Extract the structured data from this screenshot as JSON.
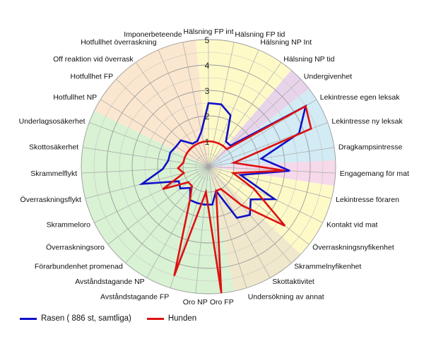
{
  "chart_data": {
    "type": "radar",
    "axes": [
      "Hälsning FP int",
      "Hälsning FP tid",
      "Hälsning NP Int",
      "Hälsning NP tid",
      "Undergivenhet",
      "Lekintresse egen leksak",
      "Lekintresse ny leksak",
      "Dragkampsintresse",
      "Engagemang för mat",
      "Lekintresse föraren",
      "Kontakt vid mat",
      "Överraskningsnyfikenhet",
      "Skrammelnyfikenhet",
      "Skottaktivitet",
      "Undersökning av annat",
      "Oro FP",
      "Oro NP",
      "Avståndstagande FP",
      "Avståndstagande NP",
      "Förarbundenhet promenad",
      "Överraskningsoro",
      "Skrammeloro",
      "Överraskningsflykt",
      "Skrammelflykt",
      "Skottosäkerhet",
      "Underlagsosäkerhet",
      "Hotfullhet NP",
      "Hotfullhet FP",
      "Off reaktion vid överrask",
      "Hotfullhet överraskning",
      "Imponerbeteende"
    ],
    "ticks": [
      "1",
      "2",
      "3",
      "4",
      "5"
    ],
    "range": [
      0,
      5
    ],
    "series": [
      {
        "name": "Rasen ( 886 st, samtliga)",
        "color": "#1010c8",
        "values": [
          2.5,
          2.5,
          2.2,
          1.2,
          1.2,
          4.5,
          3.8,
          2.1,
          3.2,
          1.3,
          2.9,
          2.1,
          2.5,
          2.3,
          1.0,
          1.5,
          1.5,
          1.5,
          1.5,
          1.1,
          1.4,
          1.3,
          2.7,
          1.8,
          1.6,
          1.6,
          1.5,
          1.5,
          1.1,
          1.1,
          1.4
        ]
      },
      {
        "name": "Hunden",
        "color": "#dd1111",
        "values": [
          1.0,
          1.0,
          1.0,
          1.0,
          1.0,
          4.5,
          4.3,
          1.0,
          3.0,
          1.0,
          2.0,
          3.8,
          2.0,
          1.0,
          1.0,
          5.0,
          1.0,
          4.5,
          1.5,
          1.0,
          1.0,
          2.0,
          1.0,
          1.2,
          1.0,
          1.0,
          1.0,
          1.0,
          1.0,
          1.0,
          1.0
        ]
      }
    ],
    "sectors": [
      {
        "from": 0,
        "to": 3,
        "color": "#fdfac8"
      },
      {
        "from": 4,
        "to": 4,
        "color": "#e8d4ea"
      },
      {
        "from": 5,
        "to": 7,
        "color": "#d2ebf5"
      },
      {
        "from": 8,
        "to": 8,
        "color": "#f6d9ea"
      },
      {
        "from": 9,
        "to": 11,
        "color": "#fdfac8"
      },
      {
        "from": 12,
        "to": 14,
        "color": "#f0e8cc"
      },
      {
        "from": 15,
        "to": 25,
        "color": "#d8f2d3"
      },
      {
        "from": 26,
        "to": 30,
        "color": "#fbe7cf"
      }
    ],
    "legend_position": "bottom-left",
    "grid": true
  }
}
